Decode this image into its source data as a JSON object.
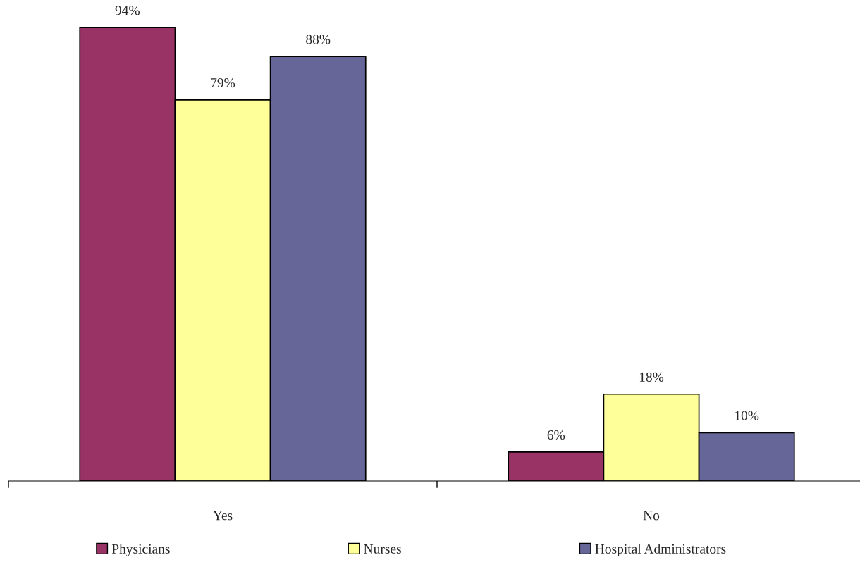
{
  "chart_data": {
    "type": "bar",
    "categories": [
      "Yes",
      "No"
    ],
    "series": [
      {
        "name": "Physicians",
        "color": "#993366",
        "values": [
          94,
          6
        ],
        "value_labels": [
          "94%",
          "6%"
        ]
      },
      {
        "name": "Nurses",
        "color": "#ffff99",
        "values": [
          79,
          18
        ],
        "value_labels": [
          "79%",
          "18%"
        ]
      },
      {
        "name": "Hospital Administrators",
        "color": "#666699",
        "values": [
          88,
          10
        ],
        "value_labels": [
          "88%",
          "10%"
        ]
      }
    ],
    "legend": "bottom",
    "grid": false
  }
}
